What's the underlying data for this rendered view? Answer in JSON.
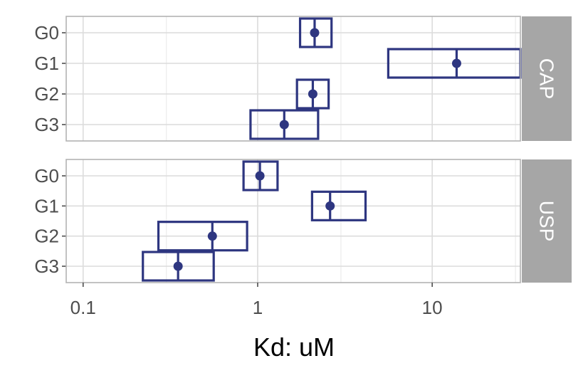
{
  "chart_data": {
    "type": "interval",
    "title": "",
    "xlabel": "Kd: uM",
    "ylabel": "",
    "x_scale": "log10",
    "xlim": [
      0.08,
      32
    ],
    "x_ticks": [
      {
        "value": 0.1,
        "label": "0.1"
      },
      {
        "value": 1,
        "label": "1"
      },
      {
        "value": 10,
        "label": "10"
      }
    ],
    "categories": [
      "G0",
      "G1",
      "G2",
      "G3"
    ],
    "grid": true,
    "legend": "none",
    "colors": {
      "mark": "#2e3680",
      "strip": "#a6a6a6",
      "grid": "#dcdcdc",
      "panel_border": "#b3b3b3"
    },
    "panels": [
      {
        "label": "CAP",
        "rows": [
          {
            "category": "G0",
            "estimate": 2.12,
            "lower": 1.75,
            "upper": 2.65
          },
          {
            "category": "G1",
            "estimate": 13.8,
            "lower": 5.6,
            "upper": 32
          },
          {
            "category": "G2",
            "estimate": 2.07,
            "lower": 1.68,
            "upper": 2.55
          },
          {
            "category": "G3",
            "estimate": 1.42,
            "lower": 0.91,
            "upper": 2.22
          }
        ]
      },
      {
        "label": "USP",
        "rows": [
          {
            "category": "G0",
            "estimate": 1.03,
            "lower": 0.83,
            "upper": 1.3
          },
          {
            "category": "G1",
            "estimate": 2.6,
            "lower": 2.05,
            "upper": 4.15
          },
          {
            "category": "G2",
            "estimate": 0.55,
            "lower": 0.27,
            "upper": 0.87
          },
          {
            "category": "G3",
            "estimate": 0.35,
            "lower": 0.22,
            "upper": 0.56
          }
        ]
      }
    ]
  }
}
